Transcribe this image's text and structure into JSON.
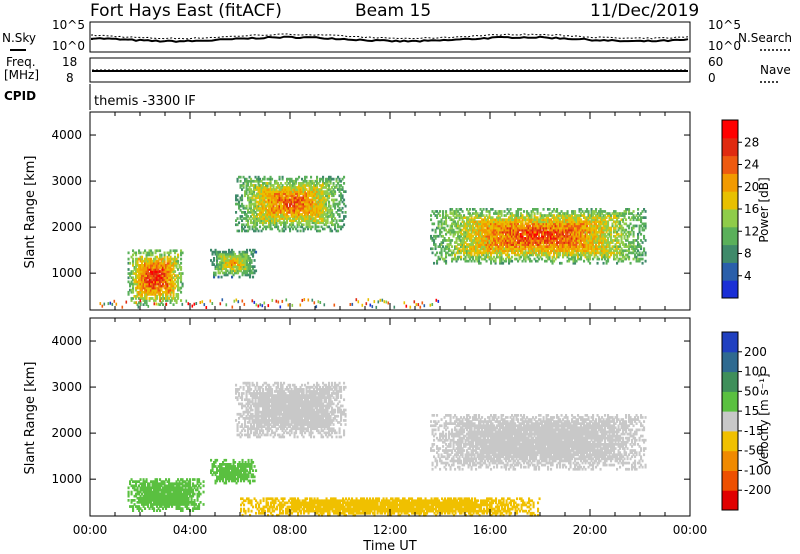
{
  "header": {
    "title": "Fort Hays East (fitACF)",
    "beam": "Beam 15",
    "date": "11/Dec/2019"
  },
  "status_panels": {
    "nsky_label": "N.Sky",
    "nsky_ticks": [
      "10^5",
      "10^0"
    ],
    "nsearch_label": "N.Search",
    "nsearch_ticks": [
      "10^5",
      "10^0"
    ],
    "freq_label_1": "Freq.",
    "freq_label_2": "[MHz]",
    "freq_ticks": [
      "18",
      "8"
    ],
    "nave_label": "Nave",
    "nave_ticks": [
      "60",
      "0"
    ],
    "cpid_label": "CPID",
    "cpid_text": "themis -3300 IF"
  },
  "colors": {
    "power_scale": [
      "#1a2fd6",
      "#2a5faa",
      "#3f8a6a",
      "#5ab05a",
      "#8fcc4a",
      "#e8c000",
      "#f29a00",
      "#ee5a10",
      "#e02a10",
      "#ff0000"
    ],
    "velocity_scale": [
      "#2040c0",
      "#2f6a90",
      "#3f8f5a",
      "#5ac040",
      "#c8c8c8",
      "#f0c000",
      "#f08a00",
      "#ee5000",
      "#e00000"
    ]
  },
  "chart_data": [
    {
      "type": "heatmap",
      "name": "power",
      "ylabel": "Slant Range [km]",
      "yticks": [
        "1000",
        "2000",
        "3000",
        "4000"
      ],
      "ylim": [
        200,
        4500
      ],
      "xlim": [
        "00:00",
        "24:00"
      ],
      "colorbar_label": "Power [dB]",
      "colorbar_ticks": [
        "4",
        "8",
        "12",
        "16",
        "20",
        "24",
        "28"
      ],
      "echo_regions": [
        {
          "t0": 1.5,
          "t1": 3.7,
          "r0": 300,
          "r1": 1500,
          "peak": 28
        },
        {
          "t0": 4.8,
          "t1": 6.6,
          "r0": 900,
          "r1": 1500,
          "peak": 20
        },
        {
          "t0": 5.8,
          "t1": 10.2,
          "r0": 1900,
          "r1": 3100,
          "peak": 24
        },
        {
          "t0": 13.6,
          "t1": 22.2,
          "r0": 1200,
          "r1": 2400,
          "peak": 26
        }
      ]
    },
    {
      "type": "heatmap",
      "name": "velocity",
      "ylabel": "Slant Range [km]",
      "yticks": [
        "1000",
        "2000",
        "3000",
        "4000"
      ],
      "ylim": [
        200,
        4500
      ],
      "xlim": [
        "00:00",
        "24:00"
      ],
      "xlabel": "Time UT",
      "xticks": [
        "00:00",
        "04:00",
        "08:00",
        "12:00",
        "16:00",
        "20:00",
        "00:00"
      ],
      "colorbar_label": "Velocity [m s⁻¹]",
      "colorbar_ticks": [
        "200",
        "100",
        "50",
        "15",
        "-15",
        "-50",
        "-100",
        "-200"
      ],
      "echo_regions": [
        {
          "t0": 1.5,
          "t1": 4.5,
          "r0": 300,
          "r1": 1000,
          "v": 30
        },
        {
          "t0": 4.8,
          "t1": 6.6,
          "r0": 900,
          "r1": 1400,
          "v": 30
        },
        {
          "t0": 5.8,
          "t1": 10.2,
          "r0": 1900,
          "r1": 3100,
          "v": 0
        },
        {
          "t0": 13.6,
          "t1": 22.2,
          "r0": 1200,
          "r1": 2400,
          "v": 0
        },
        {
          "t0": 6.0,
          "t1": 18.0,
          "r0": 200,
          "r1": 600,
          "v": -40
        }
      ]
    }
  ]
}
